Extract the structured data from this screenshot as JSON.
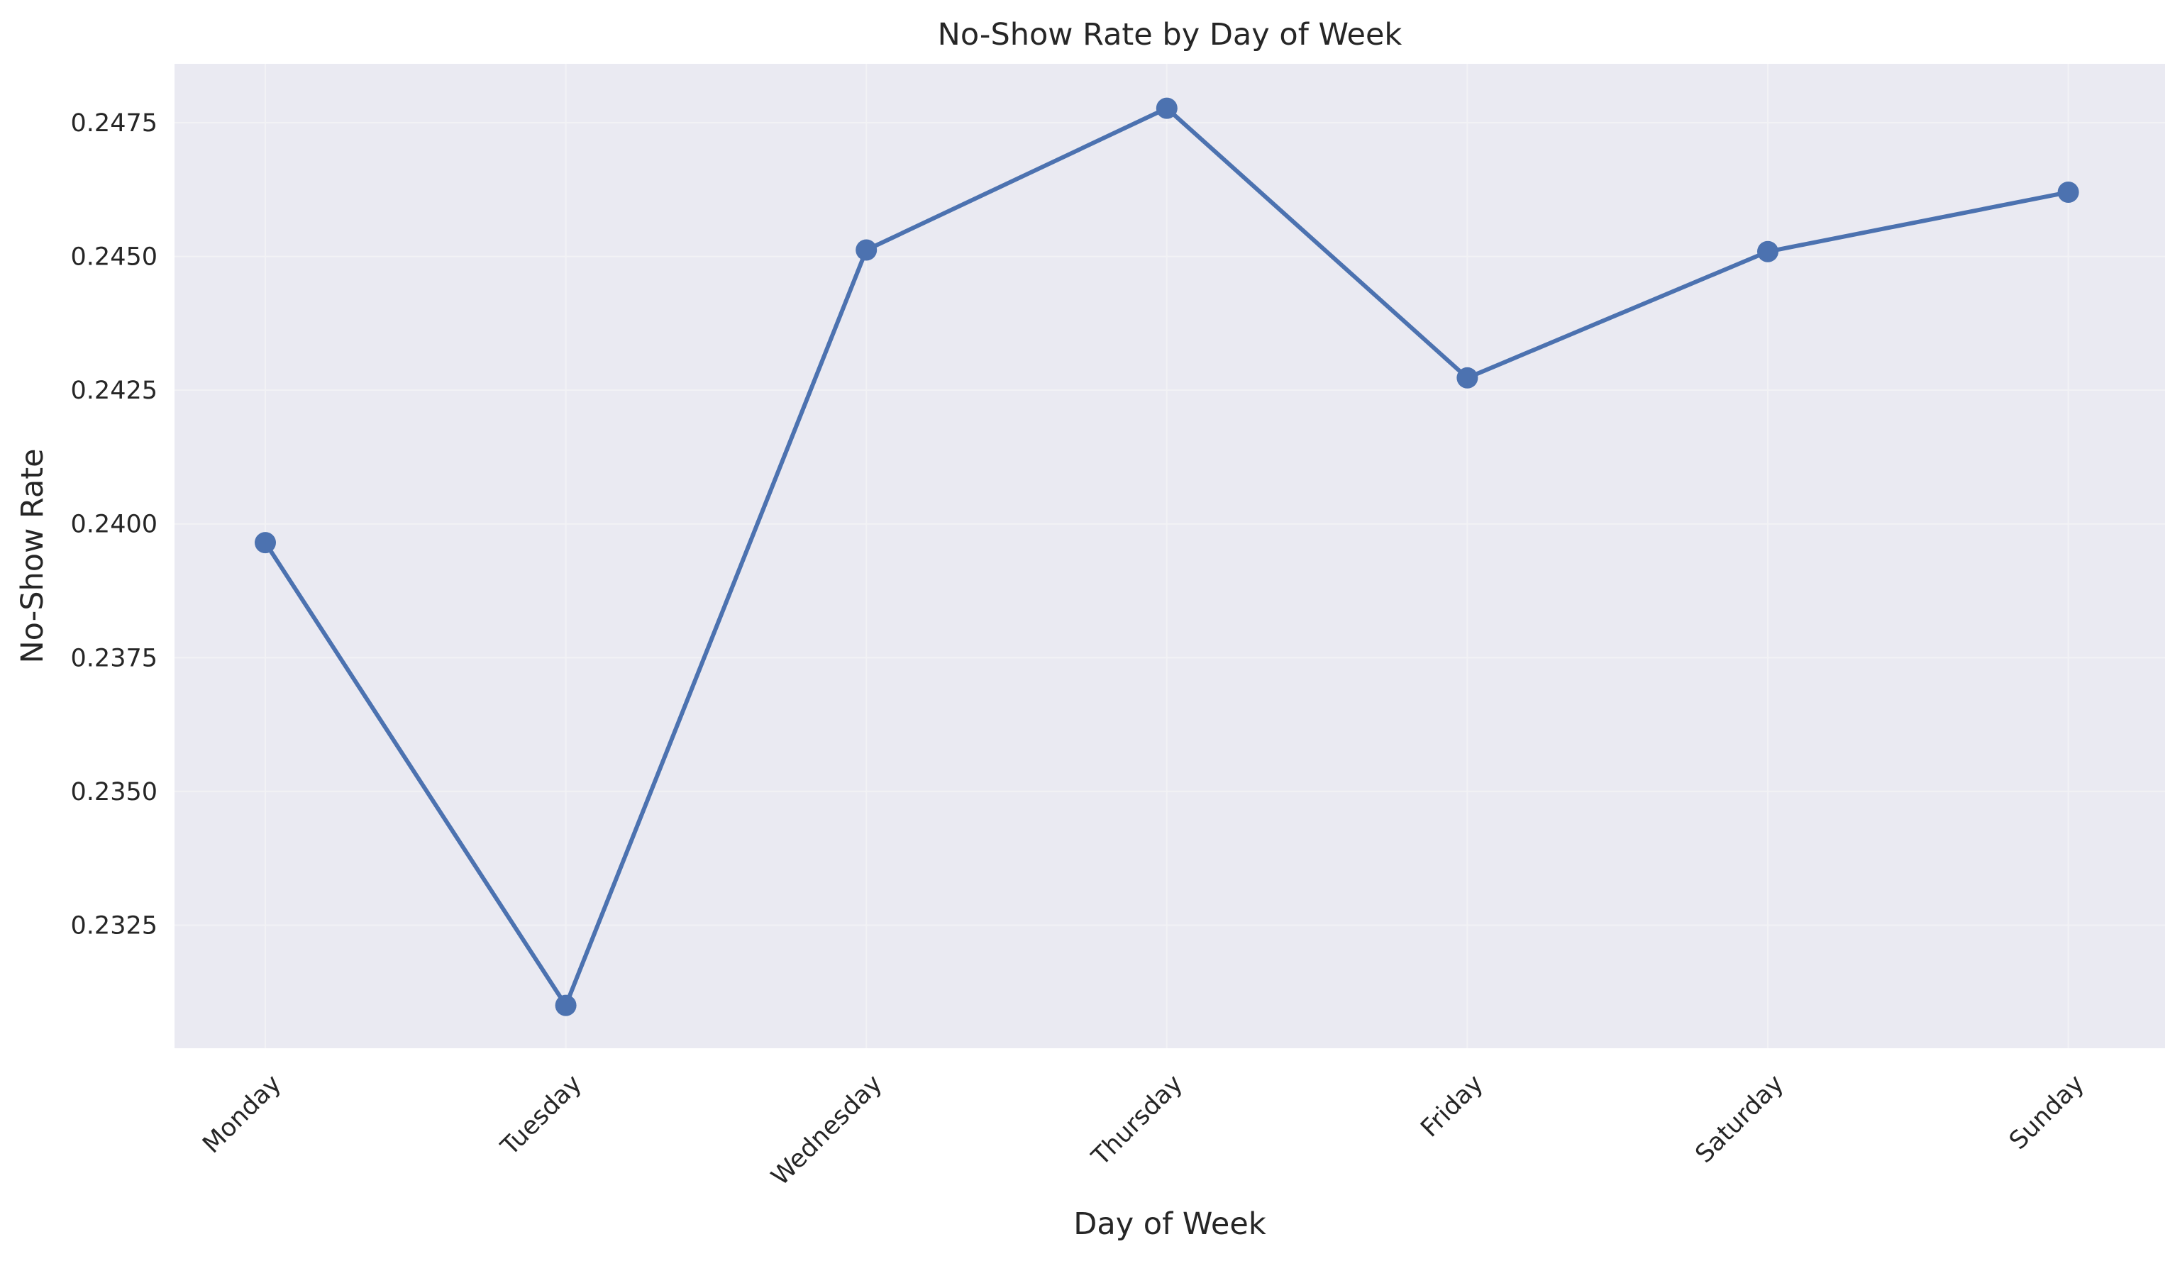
{
  "chart_data": {
    "type": "line",
    "title": "No-Show Rate by Day of Week",
    "xlabel": "Day of Week",
    "ylabel": "No-Show Rate",
    "categories": [
      "Monday",
      "Tuesday",
      "Wednesday",
      "Thursday",
      "Friday",
      "Saturday",
      "Sunday"
    ],
    "series": [
      {
        "values": [
          0.23965,
          0.231,
          0.24512,
          0.24777,
          0.24273,
          0.24509,
          0.2462
        ],
        "color": "#4c72b0"
      }
    ],
    "ylim": [
      0.2302,
      0.2486
    ],
    "yticks": [
      0.2325,
      0.235,
      0.2375,
      0.24,
      0.2425,
      0.245,
      0.2475
    ],
    "ytick_labels": [
      "0.2325",
      "0.2350",
      "0.2375",
      "0.2400",
      "0.2425",
      "0.2450",
      "0.2475"
    ],
    "grid": true,
    "background_color": "#eaeaf2",
    "grid_color": "#f2f2f5",
    "marker": "circle",
    "xtick_rotation": 45
  }
}
